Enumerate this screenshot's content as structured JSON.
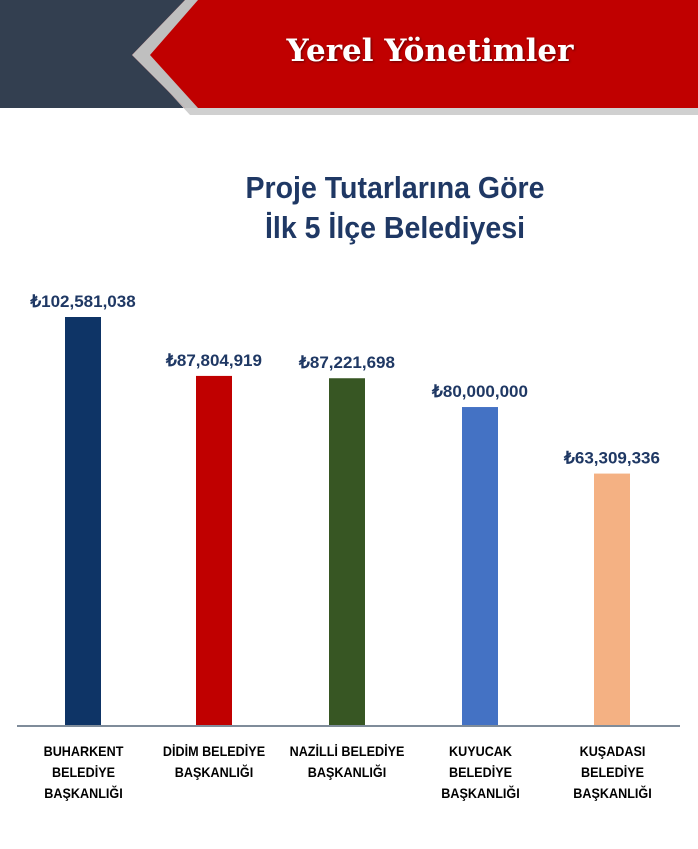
{
  "banner": {
    "title": "Yerel Yönetimler"
  },
  "chart_data": {
    "type": "bar",
    "title": "Proje Tutarlarına Göre İlk 5 İlçe Belediyesi",
    "title_lines": [
      "Proje Tutarlarına Göre",
      "İlk 5 İlçe Belediyesi"
    ],
    "categories": [
      "BUHARKENT BELEDİYE BAŞKANLIĞI",
      "DİDİM BELEDİYE BAŞKANLIĞI",
      "NAZİLLİ BELEDİYE BAŞKANLIĞI",
      "KUYUCAK BELEDİYE BAŞKANLIĞI",
      "KUŞADASI BELEDİYE BAŞKANLIĞI"
    ],
    "values": [
      102581038,
      87804919,
      87221698,
      80000000,
      63309336
    ],
    "data_labels": [
      "₺102,581,038",
      "₺87,804,919",
      "₺87,221,698",
      "₺80,000,000",
      "₺63,309,336"
    ],
    "colors": [
      "#0e3466",
      "#c00000",
      "#375623",
      "#4472c4",
      "#f4b183"
    ],
    "ylim": [
      0,
      102581038
    ],
    "grid": false,
    "xlabel": "",
    "ylabel": ""
  }
}
